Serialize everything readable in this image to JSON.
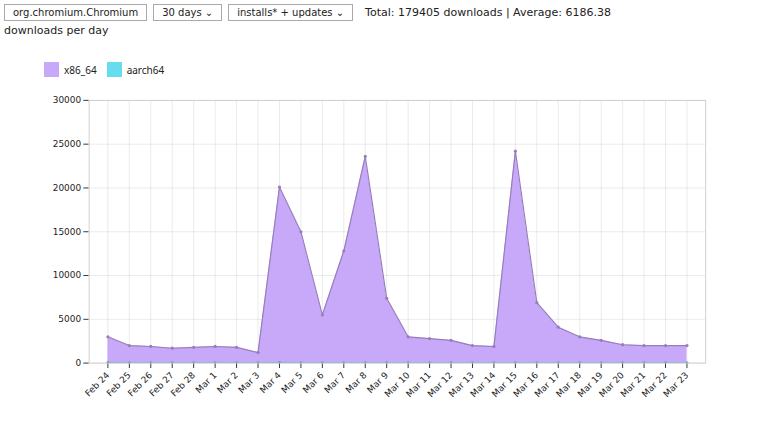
{
  "chart_data": {
    "type": "area",
    "title": "Total: 179405 downloads | Average: 6186.38",
    "subtitle": "downloads per day",
    "annotations": [
      "org.chromium.Chromium",
      "30 days  ⌄",
      "installs* + updates  ⌄"
    ],
    "categories": [
      "Feb 24",
      "Feb 25",
      "Feb 26",
      "Feb 27",
      "Feb 28",
      "Mar 1",
      "Mar 2",
      "Mar 3",
      "Mar 4",
      "Mar 5",
      "Mar 6",
      "Mar 7",
      "Mar 8",
      "Mar 9",
      "Mar 10",
      "Mar 11",
      "Mar 12",
      "Mar 13",
      "Mar 14",
      "Mar 15",
      "Mar 16",
      "Mar 17",
      "Mar 18",
      "Mar 19",
      "Mar 20",
      "Mar 21",
      "Mar 22",
      "Mar 23"
    ],
    "series": [
      {
        "name": "x86_64",
        "color": "#c8a8f8",
        "values": [
          3000,
          2000,
          1900,
          1700,
          1800,
          1900,
          1800,
          1200,
          20100,
          15000,
          5500,
          12800,
          23600,
          7400,
          3000,
          2800,
          2600,
          2000,
          1900,
          24200,
          6900,
          4100,
          3000,
          2600,
          2100,
          2000,
          2000,
          2000
        ]
      },
      {
        "name": "aarch64",
        "color": "#66ddee",
        "values": [
          50,
          40,
          30,
          30,
          30,
          30,
          30,
          30,
          50,
          40,
          30,
          30,
          40,
          30,
          30,
          30,
          30,
          30,
          30,
          40,
          30,
          30,
          30,
          30,
          30,
          30,
          30,
          30
        ]
      }
    ],
    "ylim": [
      0,
      30000
    ],
    "yticks": [
      0,
      5000,
      10000,
      15000,
      20000,
      25000,
      30000
    ],
    "grid": true,
    "legend": "top",
    "stacked": false,
    "marker": "circle"
  }
}
